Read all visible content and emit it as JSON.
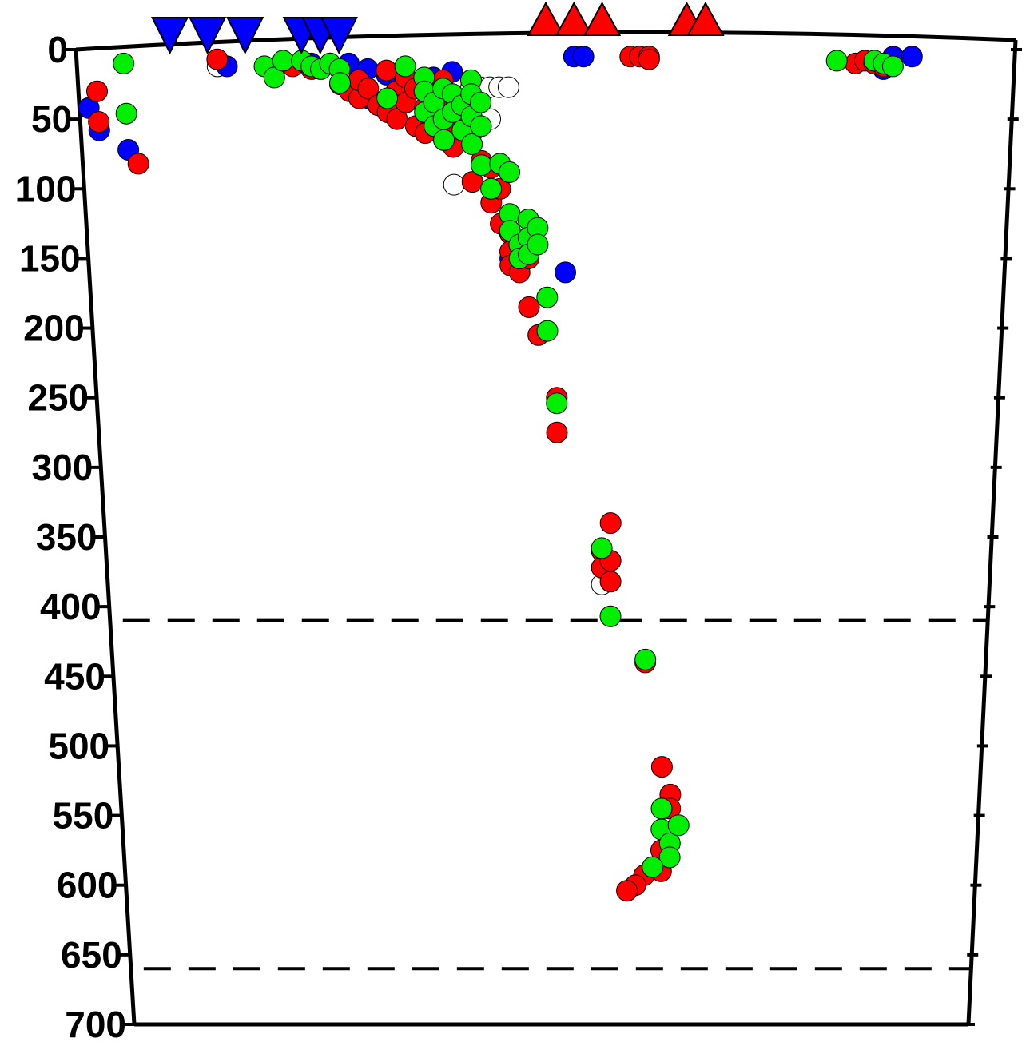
{
  "chart_data": {
    "type": "scatter",
    "title": "",
    "xlabel": "",
    "ylabel": "",
    "y_axis": {
      "inverted": true,
      "range": [
        0,
        700
      ],
      "ticks": [
        0,
        50,
        100,
        150,
        200,
        250,
        300,
        350,
        400,
        450,
        500,
        550,
        600,
        650,
        700
      ]
    },
    "x_axis": {
      "range": [
        0,
        1
      ],
      "tick_labels": []
    },
    "grid": false,
    "reference_lines": [
      {
        "depth": 410,
        "style": "dashed",
        "color": "#000000"
      },
      {
        "depth": 660,
        "style": "dashed",
        "color": "#000000"
      }
    ],
    "surface_markers": [
      {
        "symbol": "inverted-triangle",
        "color": "#0000ff",
        "x": [
          0.1,
          0.14,
          0.18,
          0.24,
          0.26,
          0.28
        ]
      },
      {
        "symbol": "triangle",
        "color": "#ff0000",
        "x": [
          0.5,
          0.53,
          0.56,
          0.65,
          0.67
        ]
      }
    ],
    "series": [
      {
        "color": "#ffffff",
        "points": [
          [
            0.15,
            12
          ],
          [
            0.42,
            27
          ],
          [
            0.43,
            27
          ],
          [
            0.44,
            27
          ],
          [
            0.45,
            27
          ],
          [
            0.46,
            27
          ],
          [
            0.44,
            50
          ],
          [
            0.4,
            97
          ],
          [
            0.56,
            384
          ]
        ]
      },
      {
        "color": "#0000ff",
        "points": [
          [
            0.01,
            42
          ],
          [
            0.02,
            58
          ],
          [
            0.05,
            72
          ],
          [
            0.16,
            12
          ],
          [
            0.25,
            10
          ],
          [
            0.27,
            10
          ],
          [
            0.29,
            10
          ],
          [
            0.31,
            14
          ],
          [
            0.33,
            18
          ],
          [
            0.31,
            35
          ],
          [
            0.34,
            30
          ],
          [
            0.36,
            25
          ],
          [
            0.38,
            20
          ],
          [
            0.4,
            16
          ],
          [
            0.46,
            150
          ],
          [
            0.52,
            160
          ],
          [
            0.53,
            5
          ],
          [
            0.54,
            5
          ],
          [
            0.86,
            14
          ],
          [
            0.87,
            5
          ],
          [
            0.89,
            5
          ]
        ]
      },
      {
        "color": "#ff0000",
        "points": [
          [
            0.02,
            30
          ],
          [
            0.02,
            52
          ],
          [
            0.06,
            82
          ],
          [
            0.15,
            7
          ],
          [
            0.22,
            10
          ],
          [
            0.23,
            12
          ],
          [
            0.25,
            14
          ],
          [
            0.27,
            10
          ],
          [
            0.28,
            25
          ],
          [
            0.29,
            30
          ],
          [
            0.3,
            35
          ],
          [
            0.3,
            22
          ],
          [
            0.31,
            28
          ],
          [
            0.32,
            40
          ],
          [
            0.33,
            15
          ],
          [
            0.33,
            45
          ],
          [
            0.34,
            30
          ],
          [
            0.34,
            50
          ],
          [
            0.35,
            20
          ],
          [
            0.35,
            38
          ],
          [
            0.36,
            55
          ],
          [
            0.36,
            28
          ],
          [
            0.37,
            42
          ],
          [
            0.37,
            60
          ],
          [
            0.38,
            30
          ],
          [
            0.38,
            48
          ],
          [
            0.39,
            65
          ],
          [
            0.39,
            22
          ],
          [
            0.4,
            38
          ],
          [
            0.4,
            55
          ],
          [
            0.4,
            70
          ],
          [
            0.41,
            44
          ],
          [
            0.42,
            60
          ],
          [
            0.42,
            95
          ],
          [
            0.43,
            80
          ],
          [
            0.44,
            85
          ],
          [
            0.44,
            110
          ],
          [
            0.45,
            100
          ],
          [
            0.45,
            125
          ],
          [
            0.46,
            132
          ],
          [
            0.46,
            145
          ],
          [
            0.46,
            155
          ],
          [
            0.47,
            140
          ],
          [
            0.47,
            160
          ],
          [
            0.48,
            150
          ],
          [
            0.48,
            185
          ],
          [
            0.49,
            205
          ],
          [
            0.51,
            250
          ],
          [
            0.51,
            275
          ],
          [
            0.56,
            360
          ],
          [
            0.56,
            372
          ],
          [
            0.57,
            367
          ],
          [
            0.57,
            382
          ],
          [
            0.57,
            340
          ],
          [
            0.61,
            440
          ],
          [
            0.63,
            515
          ],
          [
            0.64,
            535
          ],
          [
            0.64,
            545
          ],
          [
            0.63,
            575
          ],
          [
            0.63,
            590
          ],
          [
            0.61,
            593
          ],
          [
            0.6,
            600
          ],
          [
            0.59,
            604
          ],
          [
            0.59,
            5
          ],
          [
            0.6,
            5
          ],
          [
            0.61,
            5
          ],
          [
            0.61,
            7
          ],
          [
            0.83,
            10
          ],
          [
            0.84,
            8
          ],
          [
            0.85,
            10
          ],
          [
            0.86,
            12
          ]
        ]
      },
      {
        "color": "#00ee00",
        "points": [
          [
            0.05,
            46
          ],
          [
            0.05,
            10
          ],
          [
            0.2,
            12
          ],
          [
            0.21,
            20
          ],
          [
            0.22,
            8
          ],
          [
            0.24,
            8
          ],
          [
            0.25,
            12
          ],
          [
            0.26,
            14
          ],
          [
            0.27,
            10
          ],
          [
            0.28,
            14
          ],
          [
            0.28,
            24
          ],
          [
            0.33,
            35
          ],
          [
            0.35,
            12
          ],
          [
            0.37,
            20
          ],
          [
            0.37,
            30
          ],
          [
            0.37,
            45
          ],
          [
            0.38,
            55
          ],
          [
            0.38,
            38
          ],
          [
            0.39,
            28
          ],
          [
            0.39,
            50
          ],
          [
            0.39,
            65
          ],
          [
            0.4,
            32
          ],
          [
            0.4,
            45
          ],
          [
            0.41,
            40
          ],
          [
            0.41,
            58
          ],
          [
            0.42,
            22
          ],
          [
            0.42,
            32
          ],
          [
            0.42,
            48
          ],
          [
            0.42,
            68
          ],
          [
            0.43,
            38
          ],
          [
            0.43,
            55
          ],
          [
            0.43,
            83
          ],
          [
            0.44,
            100
          ],
          [
            0.45,
            82
          ],
          [
            0.46,
            88
          ],
          [
            0.46,
            118
          ],
          [
            0.46,
            130
          ],
          [
            0.47,
            140
          ],
          [
            0.47,
            150
          ],
          [
            0.48,
            122
          ],
          [
            0.48,
            135
          ],
          [
            0.48,
            147
          ],
          [
            0.49,
            128
          ],
          [
            0.49,
            140
          ],
          [
            0.5,
            178
          ],
          [
            0.5,
            202
          ],
          [
            0.51,
            254
          ],
          [
            0.56,
            358
          ],
          [
            0.57,
            407
          ],
          [
            0.61,
            438
          ],
          [
            0.63,
            545
          ],
          [
            0.63,
            560
          ],
          [
            0.64,
            570
          ],
          [
            0.64,
            580
          ],
          [
            0.65,
            557
          ],
          [
            0.62,
            587
          ],
          [
            0.81,
            8
          ],
          [
            0.85,
            8
          ],
          [
            0.86,
            10
          ],
          [
            0.87,
            12
          ]
        ]
      }
    ]
  }
}
